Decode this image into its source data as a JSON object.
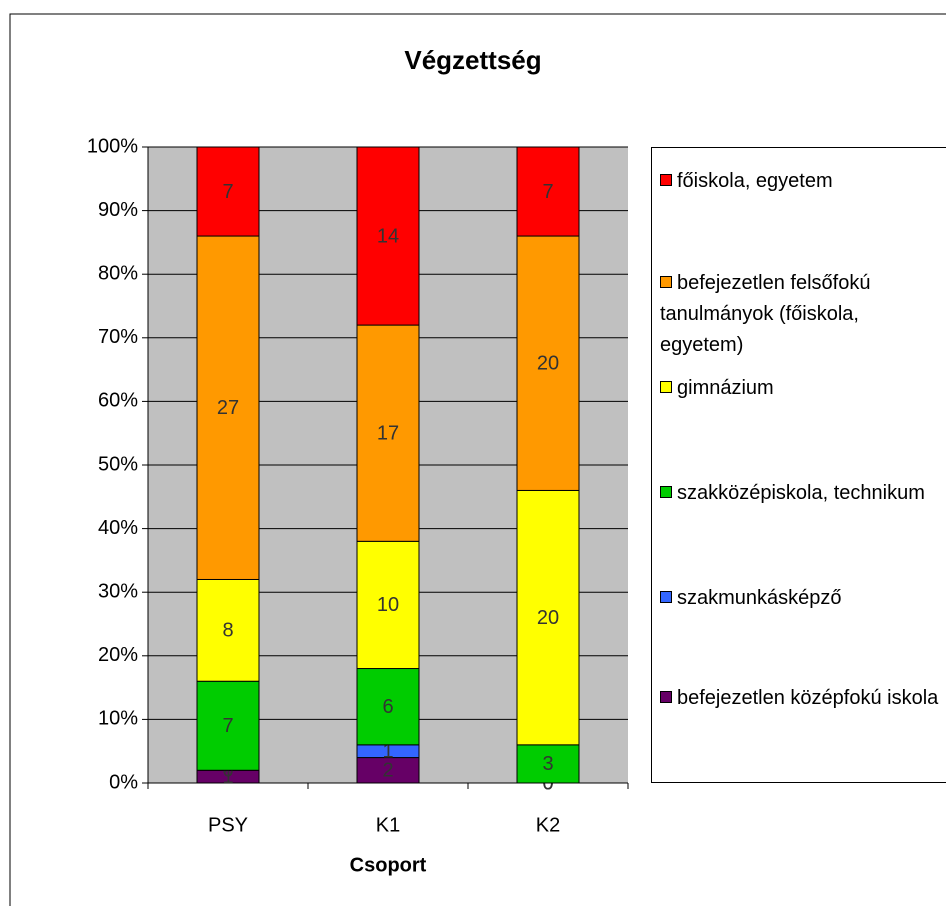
{
  "chart_data": {
    "type": "bar",
    "stacking": "percent",
    "title": "Végzettség",
    "x_label": "Csoport",
    "categories": [
      "PSY",
      "K1",
      "K2"
    ],
    "series": [
      {
        "name": "befejezetlen középfokú iskola",
        "color": "#660066",
        "values": [
          1,
          2,
          0
        ]
      },
      {
        "name": "szakmunkásképző",
        "color": "#3366ff",
        "values": [
          0,
          1,
          0
        ]
      },
      {
        "name": "szakközépiskola, technikum",
        "color": "#00cc00",
        "values": [
          7,
          6,
          3
        ]
      },
      {
        "name": "gimnázium",
        "color": "#ffff00",
        "values": [
          8,
          10,
          20
        ]
      },
      {
        "name": "befejezetlen felsőfokú tanulmányok (főiskola, egyetem)",
        "color": "#ff9900",
        "values": [
          27,
          17,
          20
        ]
      },
      {
        "name": "főiskola, egyetem",
        "color": "#ff0000",
        "values": [
          7,
          14,
          7
        ]
      }
    ],
    "ylim": [
      0,
      100
    ],
    "yticks": [
      {
        "value": 0,
        "label": "0%"
      },
      {
        "value": 10,
        "label": "10%"
      },
      {
        "value": 20,
        "label": "20%"
      },
      {
        "value": 30,
        "label": "30%"
      },
      {
        "value": 40,
        "label": "40%"
      },
      {
        "value": 50,
        "label": "50%"
      },
      {
        "value": 60,
        "label": "60%"
      },
      {
        "value": 70,
        "label": "70%"
      },
      {
        "value": 80,
        "label": "80%"
      },
      {
        "value": 90,
        "label": "90%"
      },
      {
        "value": 100,
        "label": "100%"
      }
    ],
    "grid": true,
    "plot_background": "#c0c0c0",
    "legend": "right"
  }
}
